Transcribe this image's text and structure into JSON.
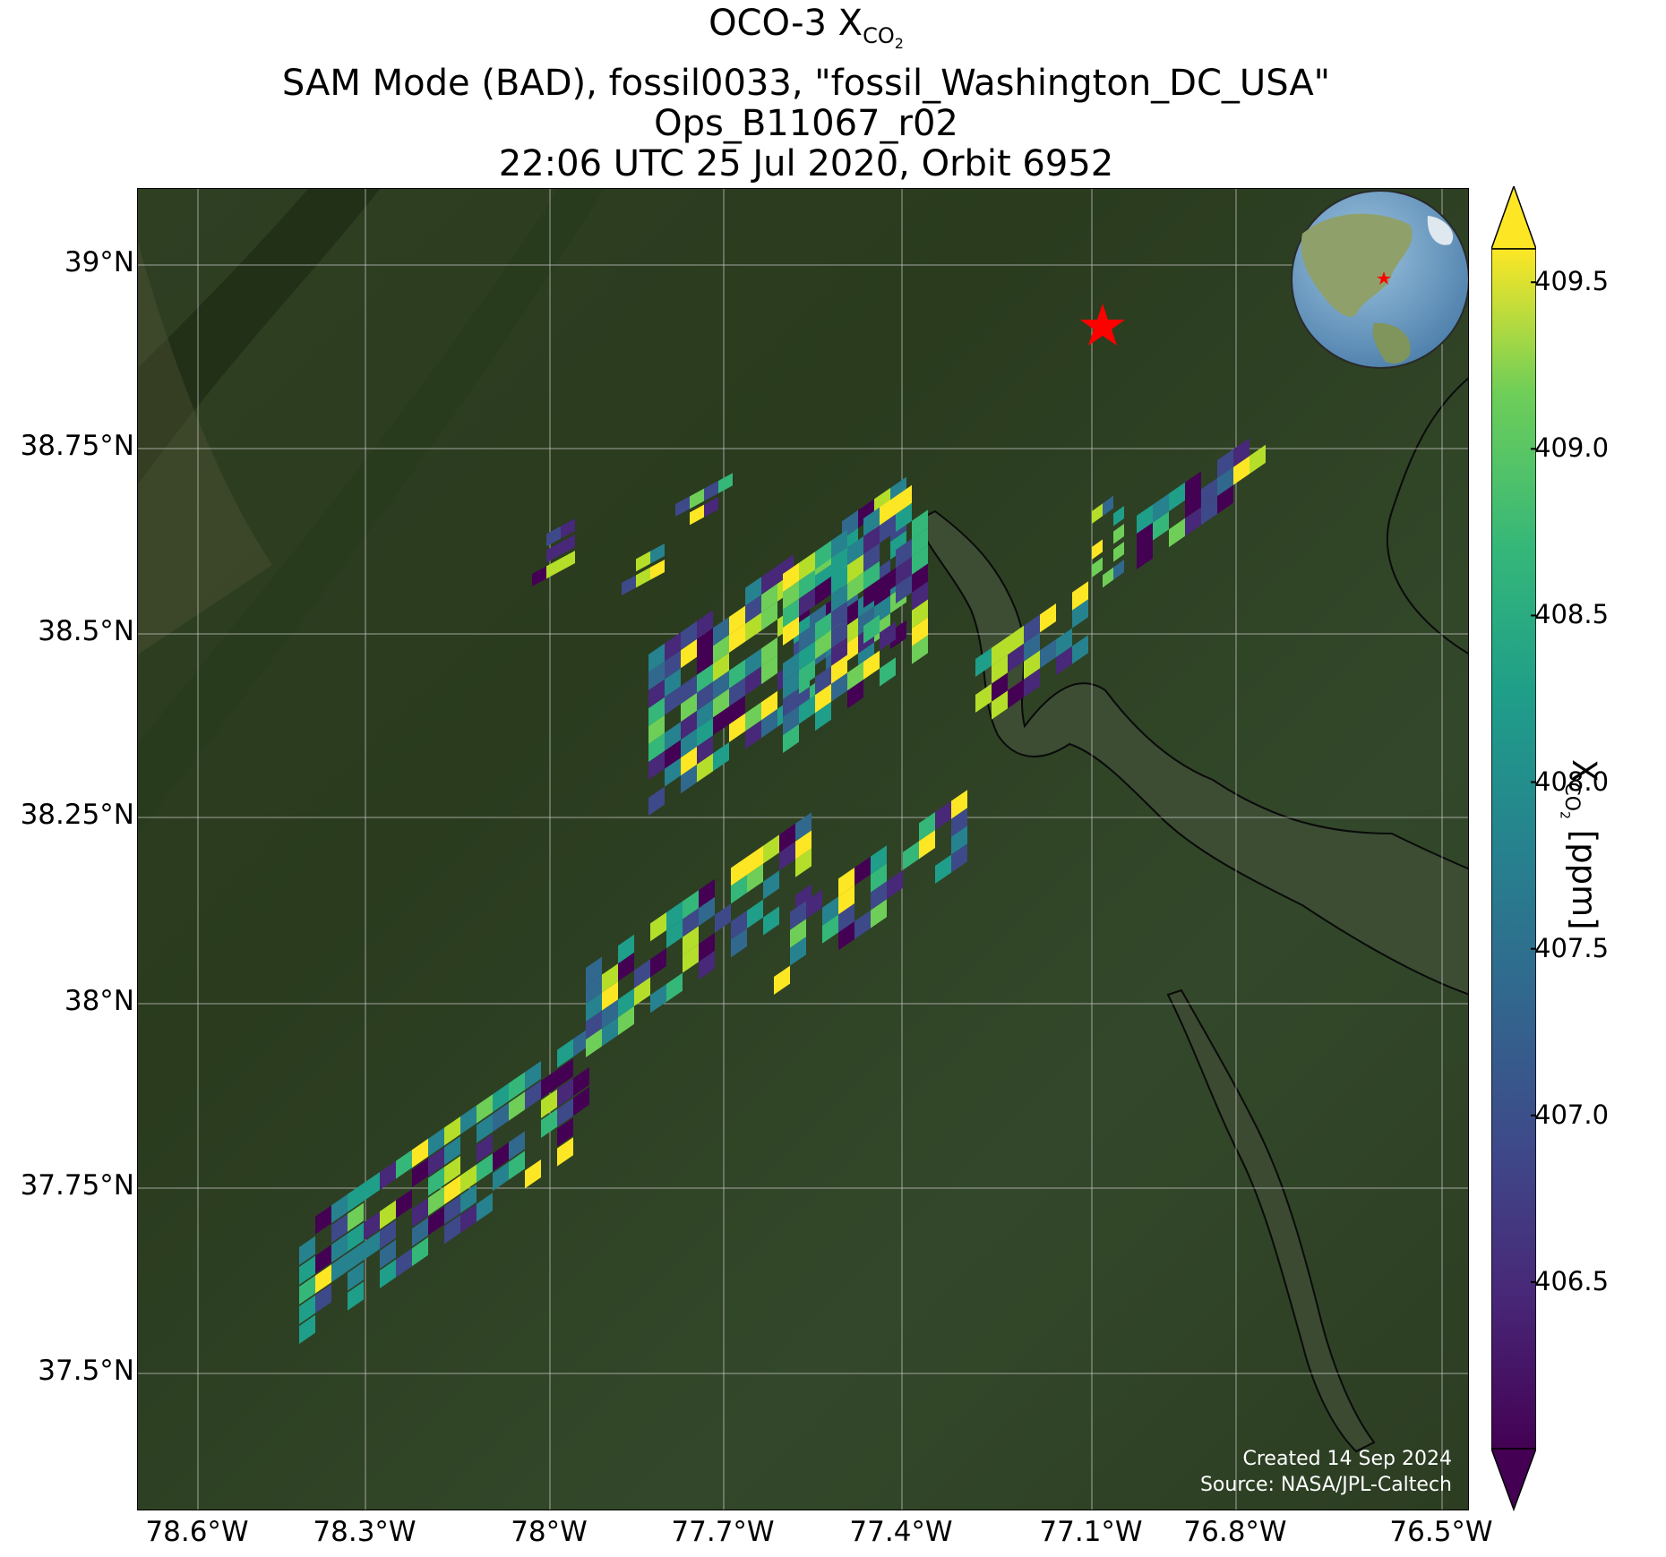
{
  "title": {
    "line1_prefix": "OCO-3 X",
    "line1_sub": "CO",
    "line1_sub2": "2",
    "line2": "SAM Mode (BAD), fossil0033, \"fossil_Washington_DC_USA\"",
    "line3": "Ops_B11067_r02",
    "line4": "22:06 UTC 25 Jul 2020, Orbit 6952"
  },
  "map": {
    "lat_ticks": [
      "39°N",
      "38.75°N",
      "38.5°N",
      "38.25°N",
      "38°N",
      "37.75°N",
      "37.5°N"
    ],
    "lon_ticks": [
      "78.6°W",
      "78.3°W",
      "78°W",
      "77.7°W",
      "77.4°W",
      "77.1°W",
      "76.8°W",
      "76.5°W"
    ],
    "target_marker": "red-star",
    "credit_line1": "Created 14 Sep 2024",
    "credit_line2": "Source: NASA/JPL-Caltech"
  },
  "colorbar": {
    "title_prefix": "X",
    "title_sub": "CO",
    "title_sub2": "2",
    "title_suffix": " [ppm]",
    "ticks": [
      "409.5",
      "409.0",
      "408.5",
      "408.0",
      "407.5",
      "407.0",
      "406.5"
    ],
    "colormap": "viridis",
    "range": [
      406.0,
      409.6
    ],
    "extend": "both"
  },
  "colors": {
    "land_dark": "#24361c",
    "land_mid": "#3b4f2a",
    "water": "#3a4a30",
    "grid": "#c8c8c8",
    "star": "#ff0000"
  }
}
